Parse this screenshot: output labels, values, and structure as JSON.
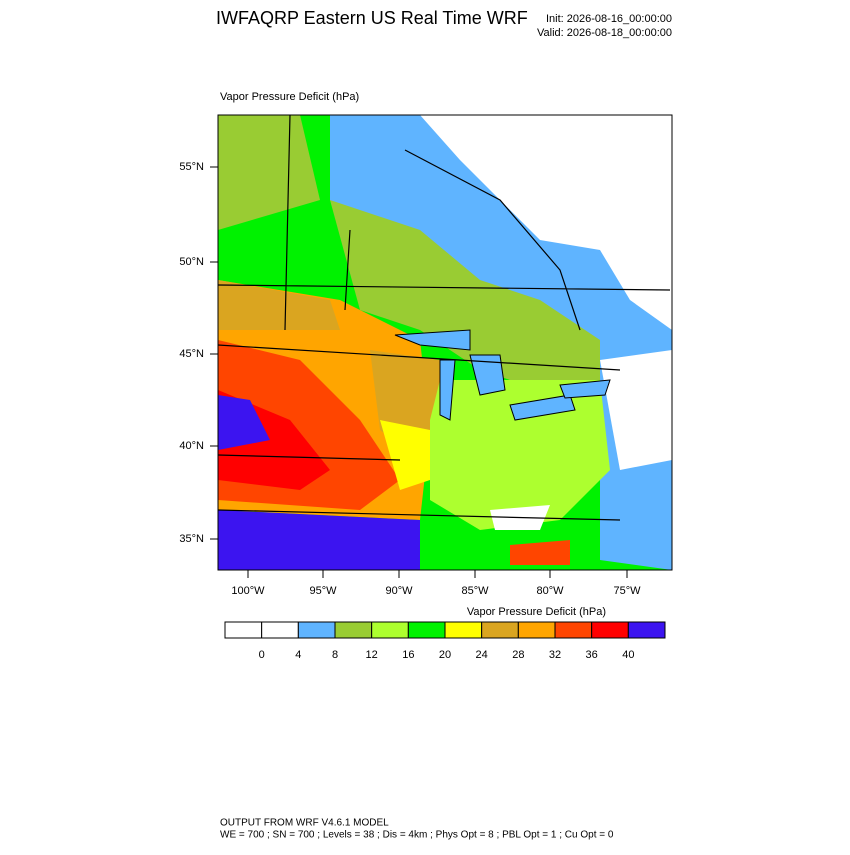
{
  "header": {
    "title": "IWFAQRP Eastern US Real Time WRF",
    "init": "Init: 2026-08-16_00:00:00",
    "valid": "Valid: 2026-08-18_00:00:00"
  },
  "map": {
    "field_label": "Vapor Pressure Deficit   (hPa)",
    "lat_labels": [
      "55°N",
      "50°N",
      "45°N",
      "40°N",
      "35°N"
    ],
    "lon_labels": [
      "100°W",
      "95°W",
      "90°W",
      "85°W",
      "80°W",
      "75°W"
    ]
  },
  "colorbar": {
    "title": "Vapor Pressure Deficit  (hPa)",
    "labels": [
      0,
      4,
      8,
      12,
      16,
      20,
      24,
      28,
      32,
      36,
      40
    ],
    "colors": [
      "#ffffff",
      "#ffffff",
      "#5fb4ff",
      "#99cc33",
      "#adff2f",
      "#00f200",
      "#ffff00",
      "#daa520",
      "#ffa500",
      "#ff4500",
      "#ff0000",
      "#3c14f0"
    ]
  },
  "footer": {
    "line1": "OUTPUT FROM WRF V4.6.1 MODEL",
    "line2": "WE = 700 ; SN = 700 ; Levels = 38 ; Dis = 4km ; Phys Opt = 8 ; PBL Opt = 1 ; Cu Opt = 0"
  }
}
